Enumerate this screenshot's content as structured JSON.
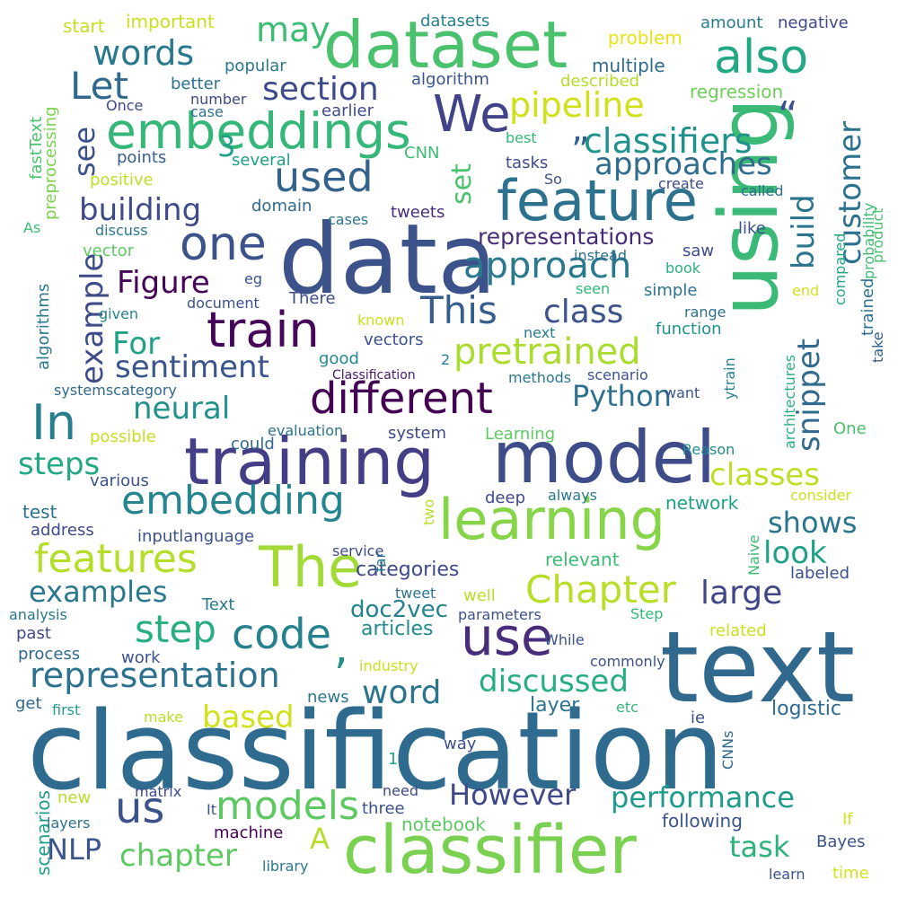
{
  "words": [
    {
      "text": "classification",
      "color": "#2f6b8e"
    },
    {
      "text": "data",
      "color": "#3b528b"
    },
    {
      "text": "text",
      "color": "#31688e"
    },
    {
      "text": "model",
      "color": "#3e4c8a"
    },
    {
      "text": "training",
      "color": "#433e85"
    },
    {
      "text": "classifier",
      "color": "#7ad151"
    },
    {
      "text": "dataset",
      "color": "#4ac16d"
    },
    {
      "text": "using",
      "color": "#3aba76"
    },
    {
      "text": "learning",
      "color": "#86d549"
    },
    {
      "text": "use",
      "color": "#472d7b"
    },
    {
      "text": "feature",
      "color": "#2c728e"
    },
    {
      "text": "The",
      "color": "#a2da37"
    },
    {
      "text": "embeddings",
      "color": "#35b779"
    },
    {
      "text": "different",
      "color": "#440154"
    },
    {
      "text": "one",
      "color": "#3b528b"
    },
    {
      "text": "train",
      "color": "#450559"
    },
    {
      "text": "We",
      "color": "#404387"
    },
    {
      "text": "In",
      "color": "#277f8e"
    },
    {
      "text": "also",
      "color": "#22a884"
    },
    {
      "text": "embedding",
      "color": "#25858e"
    },
    {
      "text": "code",
      "color": "#26818e"
    },
    {
      "text": "models",
      "color": "#5ec962"
    },
    {
      "text": "us",
      "color": "#3b528b"
    },
    {
      "text": "pretrained",
      "color": "#addc30"
    },
    {
      "text": "features",
      "color": "#b5de2b"
    },
    {
      "text": "approach",
      "color": "#2a788e"
    },
    {
      "text": "used",
      "color": "#33638d"
    },
    {
      "text": "representation",
      "color": "#2c728e"
    },
    {
      "text": "Chapter",
      "color": "#b8de29"
    },
    {
      "text": "step",
      "color": "#29af7f"
    },
    {
      "text": "words",
      "color": "#2a788e"
    },
    {
      "text": "may",
      "color": "#3dbc74"
    },
    {
      "text": "Let",
      "color": "#31688e"
    },
    {
      "text": "section",
      "color": "#3e4a89"
    },
    {
      "text": "pipeline",
      "color": "#d0e11c"
    },
    {
      "text": "classifiers",
      "color": "#20928c"
    },
    {
      "text": "approaches",
      "color": "#2f6c8e"
    },
    {
      "text": "customer",
      "color": "#2c718e"
    },
    {
      "text": "build",
      "color": "#2b748e"
    },
    {
      "text": "snippet",
      "color": "#306a8e"
    },
    {
      "text": "This",
      "color": "#365d8d"
    },
    {
      "text": "class",
      "color": "#3b528b"
    },
    {
      "text": "example",
      "color": "#3e4c8a"
    },
    {
      "text": "building",
      "color": "#3e4a89"
    },
    {
      "text": "Figure",
      "color": "#450457"
    },
    {
      "text": "For",
      "color": "#1fa188"
    },
    {
      "text": "sentiment",
      "color": "#39558c"
    },
    {
      "text": "neural",
      "color": "#21918c"
    },
    {
      "text": "Python",
      "color": "#2d708e"
    },
    {
      "text": "classes",
      "color": "#bddf26"
    },
    {
      "text": "steps",
      "color": "#22a884"
    },
    {
      "text": "However",
      "color": "#3f4889"
    },
    {
      "text": "performance",
      "color": "#1e9b8a"
    },
    {
      "text": "task",
      "color": "#2eb37c"
    },
    {
      "text": "chapter",
      "color": "#5ec962"
    },
    {
      "text": "NLP",
      "color": "#3a548c"
    },
    {
      "text": "A",
      "color": "#b5de2b"
    },
    {
      "text": "word",
      "color": "#2b758e"
    },
    {
      "text": "discussed",
      "color": "#26ad81"
    },
    {
      "text": "based",
      "color": "#d0e11c"
    },
    {
      "text": "large",
      "color": "#3f4788"
    },
    {
      "text": "look",
      "color": "#1fa187"
    },
    {
      "text": "shows",
      "color": "#2a768e"
    },
    {
      "text": "examples",
      "color": "#2a788e"
    },
    {
      "text": "see",
      "color": "#3b518b"
    },
    {
      "text": "set",
      "color": "#4ac16d"
    },
    {
      "text": "3",
      "color": "#1fa188"
    },
    {
      "text": "representations",
      "color": "#472c7a"
    },
    {
      "text": "categories",
      "color": "#3e4a89"
    },
    {
      "text": "doc2vec",
      "color": "#26828e"
    },
    {
      "text": "articles",
      "color": "#23898e"
    },
    {
      "text": "“",
      "color": "#3b528b"
    },
    {
      "text": "”",
      "color": "#33638d"
    },
    {
      "text": ",",
      "color": "#21918c"
    },
    {
      "text": "scenarios",
      "color": "#1f9e89"
    },
    {
      "text": "important",
      "color": "#cae11f"
    },
    {
      "text": "start",
      "color": "#c2df23"
    },
    {
      "text": "datasets",
      "color": "#26818e"
    },
    {
      "text": "amount",
      "color": "#287d8e"
    },
    {
      "text": "negative",
      "color": "#3e4a89"
    },
    {
      "text": "problem",
      "color": "#e5e419"
    },
    {
      "text": "multiple",
      "color": "#2f6b8e"
    },
    {
      "text": "popular",
      "color": "#2a778e"
    },
    {
      "text": "preprocessing",
      "color": "#7ad151"
    },
    {
      "text": "fastText",
      "color": "#4ac16d"
    },
    {
      "text": "better",
      "color": "#2c718e"
    },
    {
      "text": "algorithm",
      "color": "#39558c"
    },
    {
      "text": "described",
      "color": "#b5de2b"
    },
    {
      "text": "regression",
      "color": "#6ece58"
    },
    {
      "text": "Once",
      "color": "#3f4889"
    },
    {
      "text": "number",
      "color": "#3e4989"
    },
    {
      "text": "case",
      "color": "#2d708e"
    },
    {
      "text": "earlier",
      "color": "#3e4a89"
    },
    {
      "text": "product",
      "color": "#4ac16d"
    },
    {
      "text": "probability",
      "color": "#3dbc74"
    },
    {
      "text": "best",
      "color": "#35b779"
    },
    {
      "text": "CNN",
      "color": "#3fbc73"
    },
    {
      "text": "tasks",
      "color": "#3e4c8a"
    },
    {
      "text": "points",
      "color": "#355f8d"
    },
    {
      "text": "several",
      "color": "#1f9e89"
    },
    {
      "text": "positive",
      "color": "#bddf26"
    },
    {
      "text": "So",
      "color": "#3b528b"
    },
    {
      "text": "create",
      "color": "#3e4c8a"
    },
    {
      "text": "called",
      "color": "#2d708e"
    },
    {
      "text": "domain",
      "color": "#31688e"
    },
    {
      "text": "tweets",
      "color": "#472d7b"
    },
    {
      "text": "cases",
      "color": "#2c738e"
    },
    {
      "text": "As",
      "color": "#3dbc74"
    },
    {
      "text": "discuss",
      "color": "#2a788e"
    },
    {
      "text": "vector",
      "color": "#5ec962"
    },
    {
      "text": "instead",
      "color": "#2e6e8e"
    },
    {
      "text": "saw",
      "color": "#3e4c8a"
    },
    {
      "text": "like",
      "color": "#3b528b"
    },
    {
      "text": "compared",
      "color": "#22a884"
    },
    {
      "text": "algorithms",
      "color": "#2a788e"
    },
    {
      "text": "eg",
      "color": "#3b528b"
    },
    {
      "text": "book",
      "color": "#29af7f"
    },
    {
      "text": "trained",
      "color": "#2c718e"
    },
    {
      "text": "There",
      "color": "#3e4c8a"
    },
    {
      "text": "seen",
      "color": "#35b779"
    },
    {
      "text": "simple",
      "color": "#2c728e"
    },
    {
      "text": "end",
      "color": "#d2e21b"
    },
    {
      "text": "given",
      "color": "#26828e"
    },
    {
      "text": "document",
      "color": "#3b528b"
    },
    {
      "text": "known",
      "color": "#c8e020"
    },
    {
      "text": "range",
      "color": "#2d708e"
    },
    {
      "text": "next",
      "color": "#287c8e"
    },
    {
      "text": "function",
      "color": "#20928c"
    },
    {
      "text": "vectors",
      "color": "#3b528b"
    },
    {
      "text": "good",
      "color": "#23898e"
    },
    {
      "text": "2",
      "color": "#26818e"
    },
    {
      "text": "take",
      "color": "#33638d"
    },
    {
      "text": "Classification",
      "color": "#481769"
    },
    {
      "text": "systemscategory",
      "color": "#31688e"
    },
    {
      "text": "methods",
      "color": "#2a788e"
    },
    {
      "text": "scenario",
      "color": "#3b528b"
    },
    {
      "text": "want",
      "color": "#3b528b"
    },
    {
      "text": "ytrain",
      "color": "#26828e"
    },
    {
      "text": "architectures",
      "color": "#29af7f"
    },
    {
      "text": "evaluation",
      "color": "#2c728e"
    },
    {
      "text": "system",
      "color": "#3e4a89"
    },
    {
      "text": "Learning",
      "color": "#5ec962"
    },
    {
      "text": "possible",
      "color": "#c2df23"
    },
    {
      "text": "could",
      "color": "#306a8e"
    },
    {
      "text": "Reason",
      "color": "#23898e"
    },
    {
      "text": "One",
      "color": "#4ac16d"
    },
    {
      "text": "various",
      "color": "#3b528b"
    },
    {
      "text": "always",
      "color": "#2a788e"
    },
    {
      "text": "deep",
      "color": "#3e4a89"
    },
    {
      "text": "consider",
      "color": "#cae11f"
    },
    {
      "text": "two",
      "color": "#b5de2b"
    },
    {
      "text": "network",
      "color": "#1f9e89"
    },
    {
      "text": "test",
      "color": "#2c738e"
    },
    {
      "text": "address",
      "color": "#3e4a89"
    },
    {
      "text": "inputlanguage",
      "color": "#3b528b"
    },
    {
      "text": "far",
      "color": "#2a788e"
    },
    {
      "text": "service",
      "color": "#3e4c8a"
    },
    {
      "text": "relevant",
      "color": "#3dbc74"
    },
    {
      "text": "Naive",
      "color": "#3dbc74"
    },
    {
      "text": "labeled",
      "color": "#3b528b"
    },
    {
      "text": "Text",
      "color": "#2a788e"
    },
    {
      "text": "tweet",
      "color": "#2c738e"
    },
    {
      "text": "well",
      "color": "#b8de29"
    },
    {
      "text": "analysis",
      "color": "#2a788e"
    },
    {
      "text": "parameters",
      "color": "#3b528b"
    },
    {
      "text": "Step",
      "color": "#35b779"
    },
    {
      "text": "past",
      "color": "#3e4a89"
    },
    {
      "text": "While",
      "color": "#3b528b"
    },
    {
      "text": "related",
      "color": "#c8e020"
    },
    {
      "text": "process",
      "color": "#306a8e"
    },
    {
      "text": "work",
      "color": "#3b528b"
    },
    {
      "text": "commonly",
      "color": "#3b528b"
    },
    {
      "text": "industry",
      "color": "#cae11f"
    },
    {
      "text": "news",
      "color": "#2a788e"
    },
    {
      "text": "get",
      "color": "#31688e"
    },
    {
      "text": "first",
      "color": "#1f9e89"
    },
    {
      "text": "make",
      "color": "#b8de29"
    },
    {
      "text": "layer",
      "color": "#2c718e"
    },
    {
      "text": "etc",
      "color": "#35b779"
    },
    {
      "text": "ie",
      "color": "#3b528b"
    },
    {
      "text": "logistic",
      "color": "#2f6b8e"
    },
    {
      "text": "way",
      "color": "#3b528b"
    },
    {
      "text": "CNNs",
      "color": "#31688e"
    },
    {
      "text": "1",
      "color": "#22a884"
    },
    {
      "text": "new",
      "color": "#b5de2b"
    },
    {
      "text": "need",
      "color": "#3e4a89"
    },
    {
      "text": "matrix",
      "color": "#3e4c8a"
    },
    {
      "text": "It",
      "color": "#3b528b"
    },
    {
      "text": "three",
      "color": "#3b528b"
    },
    {
      "text": "layers",
      "color": "#2c718e"
    },
    {
      "text": "machine",
      "color": "#440154"
    },
    {
      "text": "notebook",
      "color": "#5ec962"
    },
    {
      "text": "following",
      "color": "#3b528b"
    },
    {
      "text": "If",
      "color": "#d2e21b"
    },
    {
      "text": "Bayes",
      "color": "#3b528b"
    },
    {
      "text": "library",
      "color": "#2a788e"
    },
    {
      "text": "learn",
      "color": "#3b528b"
    },
    {
      "text": "time",
      "color": "#d2e21b"
    }
  ]
}
